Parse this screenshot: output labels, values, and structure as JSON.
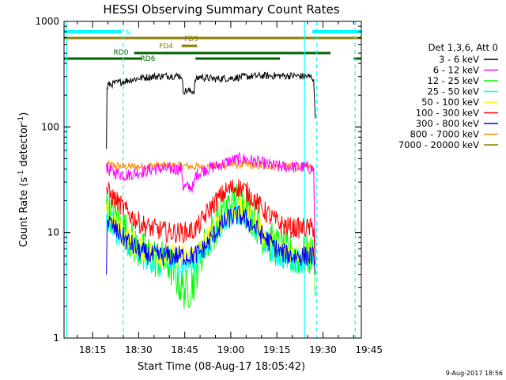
{
  "chart_data": {
    "type": "line",
    "title": "HESSI Observing Summary Count Rates",
    "xlabel": "Start Time (08-Aug-17 18:05:42)",
    "ylabel": "Count Rate (s",
    "ylabel_sup1": "-1",
    "ylabel_mid": " detector",
    "ylabel_sup2": "-1",
    "ylabel_end": ")",
    "y_scale": "log",
    "ylim": [
      1,
      1000
    ],
    "xlim_minutes": [
      5.7,
      102.5
    ],
    "x_tick_labels": [
      {
        "label": "18:15",
        "minutes": 15
      },
      {
        "label": "18:30",
        "minutes": 30
      },
      {
        "label": "18:45",
        "minutes": 45
      },
      {
        "label": "19:00",
        "minutes": 60
      },
      {
        "label": "19:15",
        "minutes": 75
      },
      {
        "label": "19:30",
        "minutes": 90
      },
      {
        "label": "19:45",
        "minutes": 105
      }
    ],
    "y_tick_labels": [
      {
        "label": "1",
        "value": 1
      },
      {
        "label": "10",
        "value": 10
      },
      {
        "label": "100",
        "value": 100
      },
      {
        "label": "1000",
        "value": 1000
      }
    ],
    "legend_header": "Det 1,3,6, Att 0",
    "legend_placement": "right",
    "footer_date": "9-Aug-2017 18:56",
    "series": [
      {
        "name": "3 - 6 keV",
        "color": "#000000",
        "x": [
          19.5,
          19.7,
          20,
          25,
          30,
          35,
          40,
          44,
          44.5,
          48,
          48.5,
          50,
          52,
          55,
          60,
          65,
          70,
          75,
          80,
          85,
          86.5,
          87,
          87.5
        ],
        "y": [
          62,
          230,
          250,
          270,
          290,
          300,
          305,
          305,
          220,
          218,
          280,
          300,
          290,
          285,
          290,
          300,
          305,
          305,
          305,
          300,
          295,
          280,
          120
        ]
      },
      {
        "name": "6 - 12 keV",
        "color": "#ff00ff",
        "x": [
          19.5,
          19.7,
          22,
          26,
          30,
          35,
          40,
          44,
          44.5,
          48,
          48.5,
          52,
          56,
          60,
          64,
          68,
          72,
          76,
          80,
          85,
          87,
          87.5
        ],
        "y": [
          45,
          40,
          37,
          35,
          37,
          40,
          40,
          40,
          27,
          27,
          35,
          40,
          43,
          48,
          50,
          47,
          44,
          42,
          42,
          41,
          40,
          5
        ]
      },
      {
        "name": "12 - 25 keV",
        "color": "#00ff00",
        "x": [
          19.5,
          19.7,
          22,
          25,
          28,
          31,
          34,
          37,
          40,
          42,
          44,
          46,
          48,
          50,
          52,
          54,
          56,
          58,
          60,
          62,
          64,
          66,
          68,
          70,
          73,
          76,
          80,
          85,
          87,
          87.5
        ],
        "y": [
          18,
          17,
          14,
          11,
          8,
          6.5,
          6,
          5.5,
          5,
          4,
          3,
          2.8,
          3.5,
          6,
          8,
          10,
          13,
          16,
          19,
          20,
          19,
          16,
          13,
          10,
          8,
          7,
          6,
          6,
          6,
          2.5
        ]
      },
      {
        "name": "25 - 50 keV",
        "color": "#00ffff",
        "x": [
          19.5,
          19.7,
          22,
          25,
          28,
          31,
          34,
          37,
          40,
          44,
          48,
          50,
          52,
          54,
          56,
          58,
          60,
          62,
          64,
          66,
          68,
          70,
          73,
          76,
          80,
          85,
          87,
          87.5
        ],
        "y": [
          15,
          14,
          11,
          9,
          7,
          6,
          5.5,
          5,
          5,
          5,
          5,
          6,
          7.5,
          9,
          11,
          13,
          15,
          16,
          15,
          13,
          11,
          9,
          7,
          6,
          5.5,
          5.5,
          5.5,
          3
        ]
      },
      {
        "name": "50 - 100 keV",
        "color": "#ffff00",
        "x": [
          19.5,
          19.7,
          22,
          25,
          28,
          31,
          34,
          37,
          40,
          44,
          48,
          50,
          52,
          54,
          56,
          58,
          60,
          62,
          64,
          66,
          68,
          70,
          73,
          76,
          80,
          85,
          87,
          87.5
        ],
        "y": [
          16,
          15,
          12,
          10,
          8,
          7,
          6.5,
          6,
          6,
          6,
          6,
          7,
          8.5,
          10,
          12,
          14,
          16,
          17,
          16,
          14,
          12,
          10,
          8,
          7,
          6.5,
          6.5,
          6.5,
          3
        ]
      },
      {
        "name": "100 - 300 keV",
        "color": "#ff0000",
        "x": [
          19.5,
          19.7,
          22,
          25,
          28,
          31,
          34,
          37,
          40,
          44,
          48,
          50,
          52,
          54,
          56,
          58,
          60,
          62,
          64,
          66,
          68,
          70,
          73,
          76,
          80,
          85,
          87,
          87.5
        ],
        "y": [
          27,
          25,
          21,
          17,
          14,
          12,
          11,
          10.5,
          10,
          10,
          10.5,
          12,
          15,
          18,
          21,
          24,
          26,
          27,
          26,
          23,
          20,
          17,
          14,
          12,
          11,
          11,
          11,
          5
        ]
      },
      {
        "name": "300 - 800 keV",
        "color": "#0000ff",
        "x": [
          19.5,
          19.7,
          22,
          25,
          28,
          31,
          34,
          37,
          40,
          44,
          48,
          50,
          52,
          54,
          56,
          58,
          60,
          62,
          64,
          66,
          68,
          70,
          73,
          76,
          80,
          85,
          87,
          87.5
        ],
        "y": [
          4,
          13,
          11,
          9,
          7.5,
          6.5,
          6,
          6,
          6,
          6,
          6,
          6.5,
          7.5,
          9,
          11,
          12.5,
          14,
          14.5,
          14,
          12.5,
          11,
          9.5,
          8,
          6.5,
          6,
          6,
          6,
          4
        ]
      },
      {
        "name": "800 - 7000 keV",
        "color": "#ff8c00",
        "x": [
          19.5,
          19.7,
          22,
          26,
          30,
          35,
          40,
          44,
          48,
          52,
          56,
          60,
          64,
          68,
          72,
          76,
          80,
          85,
          87,
          87.5
        ],
        "y": [
          46,
          44,
          43,
          42,
          42,
          43,
          43,
          43,
          42,
          42,
          43,
          44,
          44,
          43,
          43,
          42,
          42,
          42,
          41,
          5
        ]
      },
      {
        "name": "7000 - 20000 keV",
        "color": "#8b8000",
        "x": [],
        "y": []
      }
    ],
    "flag_labels": [
      "N",
      "FD3",
      "FD4",
      "RD0",
      "RD6"
    ],
    "flags": [
      {
        "label_index": 0,
        "color": "#00ffff",
        "segments": [
          [
            5.7,
            24.5
          ],
          [
            86.5,
            102.5
          ]
        ],
        "level": 0
      },
      {
        "label_index": 1,
        "color": "#8b8000",
        "segments": [
          [
            5.7,
            102.5
          ]
        ],
        "level": 1
      },
      {
        "label_index": 2,
        "color": "#8b8000",
        "segments": [
          [
            44,
            49
          ]
        ],
        "level": 2
      },
      {
        "label_index": 3,
        "color": "#006400",
        "segments": [
          [
            28.5,
            92.5
          ]
        ],
        "level": 3
      },
      {
        "label_index": 4,
        "color": "#006400",
        "segments": [
          [
            5.7,
            31
          ],
          [
            48.5,
            76
          ],
          [
            100,
            102.5
          ]
        ],
        "level": 4
      }
    ],
    "vertical_markers": [
      {
        "minutes": 6.5,
        "color": "#00ffff",
        "style": "solid"
      },
      {
        "minutes": 25,
        "color": "#00ffff",
        "style": "dashed"
      },
      {
        "minutes": 84,
        "color": "#00ffff",
        "style": "solid"
      },
      {
        "minutes": 88,
        "color": "#00ffff",
        "style": "dashed"
      },
      {
        "minutes": 100.5,
        "color": "#00ffff",
        "style": "dashed"
      }
    ]
  }
}
